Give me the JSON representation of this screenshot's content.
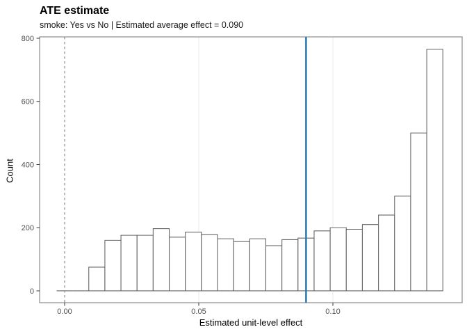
{
  "chart_data": {
    "type": "bar",
    "subtype": "histogram",
    "title": "ATE estimate",
    "subtitle": "smoke: Yes vs No | Estimated average effect = 0.090",
    "xlabel": "Estimated unit-level effect",
    "ylabel": "Count",
    "estimated_average_effect": 0.09,
    "bin_start": -0.003,
    "bin_width": 0.006,
    "counts": [
      0,
      0,
      75,
      160,
      176,
      176,
      197,
      170,
      186,
      178,
      165,
      156,
      165,
      143,
      162,
      167,
      190,
      200,
      195,
      210,
      240,
      300,
      500,
      765
    ],
    "x_ticks": [
      {
        "value": 0.0,
        "label": "0.00"
      },
      {
        "value": 0.05,
        "label": "0.05"
      },
      {
        "value": 0.1,
        "label": "0.10"
      }
    ],
    "y_ticks": [
      {
        "value": 0,
        "label": "0"
      },
      {
        "value": 200,
        "label": "200"
      },
      {
        "value": 400,
        "label": "400"
      },
      {
        "value": 600,
        "label": "600"
      },
      {
        "value": 800,
        "label": "800"
      }
    ],
    "xlim": [
      -0.00933,
      0.14819
    ],
    "ylim": [
      -37.5,
      804.4
    ],
    "gridlines_x": [
      0.05,
      0.1
    ],
    "grid_horizontal": "off",
    "legend": "none",
    "vlines": [
      {
        "name": "zero-reference-line",
        "x": 0.0,
        "style": "dashed",
        "color": "#8f8f8f",
        "width": 1.2
      },
      {
        "name": "ate-estimate-line",
        "x": 0.09,
        "style": "solid",
        "color": "#2b7cb9",
        "width": 2.6
      }
    ],
    "colors": {
      "background": "#ffffff",
      "bar_fill": "#ffffff",
      "bar_stroke": "#666666",
      "panel_border": "#757575",
      "gridline": "#e9e9e9",
      "tick_mark": "#333333",
      "tick_label": "#4d4d4d",
      "accent_blue": "#2b7cb9"
    }
  }
}
